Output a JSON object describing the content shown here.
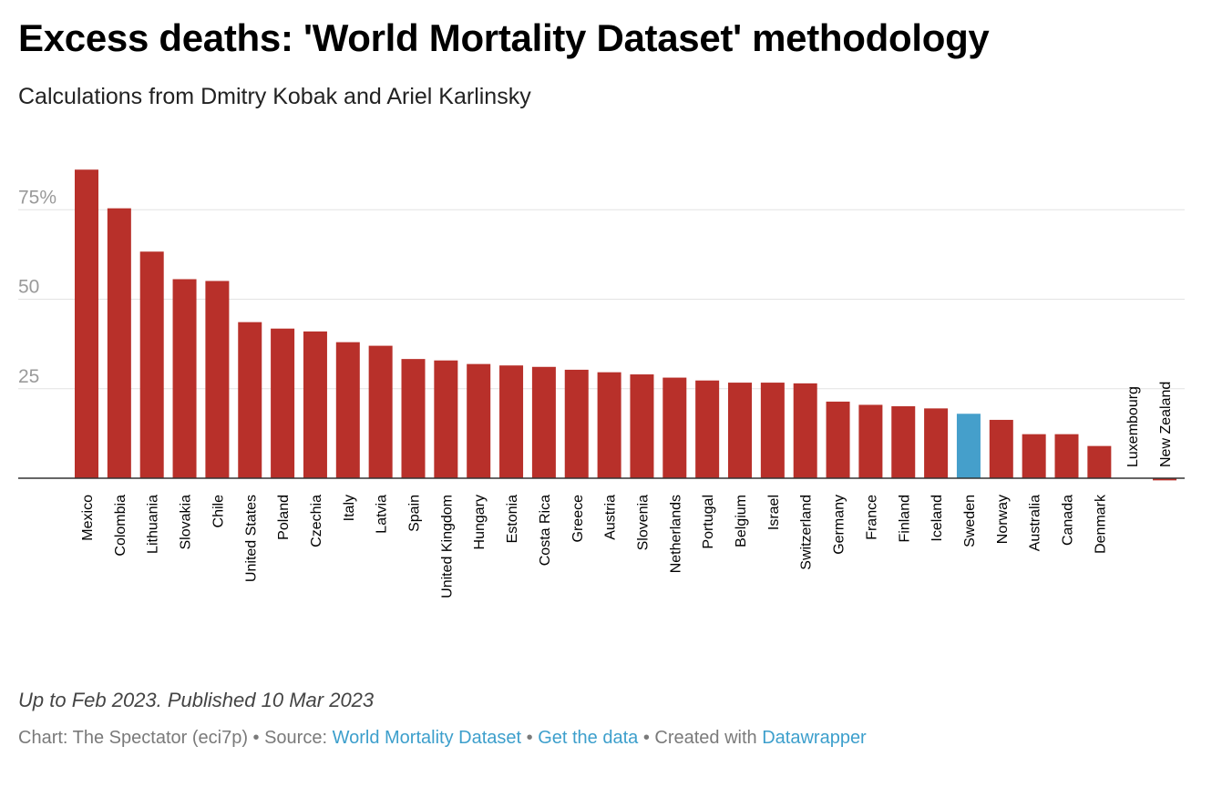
{
  "header": {
    "title": "Excess deaths:  'World Mortality Dataset' methodology",
    "subtitle": "Calculations from Dmitry Kobak and Ariel Karlinsky"
  },
  "colors": {
    "bar": "#b8302a",
    "highlight": "#459fcb",
    "grid": "#e3e3e3",
    "baseline": "#333333",
    "link": "#3d9fcc"
  },
  "chart_data": {
    "type": "bar",
    "title": "Excess deaths:  'World Mortality Dataset' methodology",
    "subtitle": "Calculations from Dmitry Kobak and Ariel Karlinsky",
    "xlabel": "",
    "ylabel": "",
    "ylim": [
      0,
      90
    ],
    "yticks": [
      {
        "value": 25,
        "label": "25"
      },
      {
        "value": 50,
        "label": "50"
      },
      {
        "value": 75,
        "label": "75%"
      }
    ],
    "grid": true,
    "highlight": "Sweden",
    "categories": [
      "Mexico",
      "Colombia",
      "Lithuania",
      "Slovakia",
      "Chile",
      "United States",
      "Poland",
      "Czechia",
      "Italy",
      "Latvia",
      "Spain",
      "United Kingdom",
      "Hungary",
      "Estonia",
      "Costa Rica",
      "Greece",
      "Austria",
      "Slovenia",
      "Netherlands",
      "Portugal",
      "Belgium",
      "Israel",
      "Switzerland",
      "Germany",
      "France",
      "Finland",
      "Iceland",
      "Sweden",
      "Norway",
      "Australia",
      "Canada",
      "Denmark",
      "Luxembourg",
      "New Zealand"
    ],
    "values": [
      86.2,
      75.4,
      63.3,
      55.6,
      55.1,
      43.6,
      41.8,
      41.0,
      38.0,
      37.0,
      33.3,
      32.9,
      31.9,
      31.5,
      31.1,
      30.3,
      29.6,
      29.0,
      28.1,
      27.3,
      26.7,
      26.7,
      26.5,
      21.4,
      20.5,
      20.1,
      19.5,
      18.0,
      16.3,
      12.3,
      12.3,
      9.0,
      0,
      -0.6
    ]
  },
  "footer": {
    "notes": "Up to Feb 2023. Published 10 Mar 2023",
    "chart_prefix": "Chart: The Spectator (eci7p) • Source: ",
    "source_link": "World Mortality Dataset",
    "sep1": " • ",
    "data_link": "Get the data",
    "sep2": " • Created with ",
    "tool_link": "Datawrapper"
  }
}
